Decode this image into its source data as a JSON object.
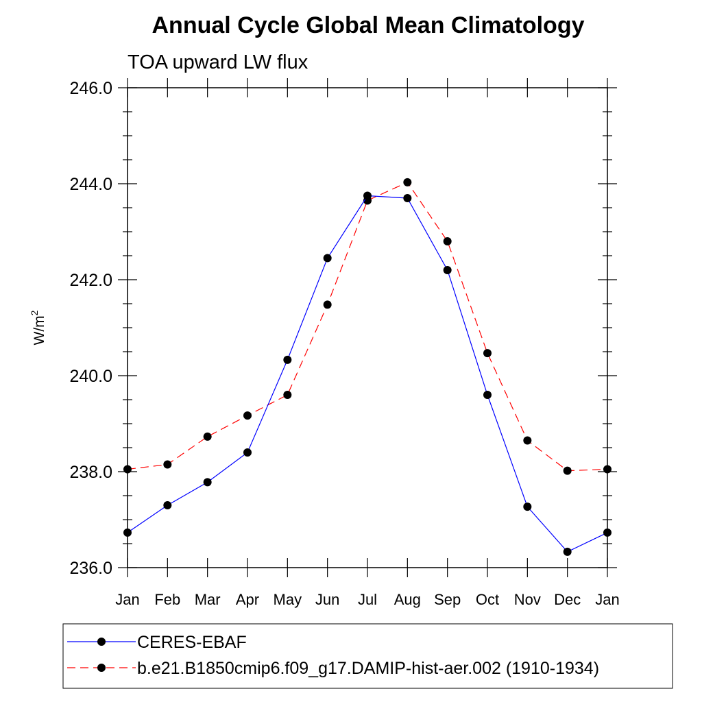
{
  "chart_data": {
    "type": "line",
    "title": "Annual Cycle Global Mean Climatology",
    "subtitle": "TOA upward LW flux",
    "ylabel_base": "W/m",
    "ylabel_sup": "2",
    "categories": [
      "Jan",
      "Feb",
      "Mar",
      "Apr",
      "May",
      "Jun",
      "Jul",
      "Aug",
      "Sep",
      "Oct",
      "Nov",
      "Dec",
      "Jan"
    ],
    "ylim": [
      236.0,
      246.0
    ],
    "yticks": [
      "236.0",
      "238.0",
      "240.0",
      "242.0",
      "244.0",
      "246.0"
    ],
    "series": [
      {
        "name": "CERES-EBAF",
        "color": "#0000ff",
        "dash": "solid",
        "values": [
          236.73,
          237.3,
          237.78,
          238.4,
          240.33,
          242.45,
          243.75,
          243.7,
          242.2,
          239.6,
          237.27,
          236.33,
          236.73
        ]
      },
      {
        "name": "b.e21.B1850cmip6.f09_g17.DAMIP-hist-aer.002 (1910-1934)",
        "color": "#ff0000",
        "dash": "dashed",
        "values": [
          238.05,
          238.15,
          238.73,
          239.17,
          239.6,
          241.48,
          243.65,
          244.03,
          242.8,
          240.47,
          238.65,
          238.02,
          238.05
        ]
      }
    ],
    "grid": false,
    "legend_position": "bottom"
  }
}
